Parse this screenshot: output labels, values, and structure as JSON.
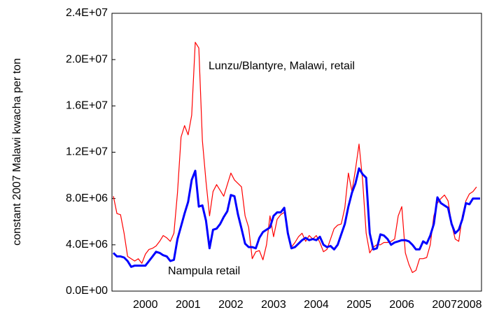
{
  "chart_data": {
    "type": "line",
    "y_label": "constant 2007 Malawi kwacha per ton",
    "categories": [
      null,
      null,
      null,
      null,
      null,
      null,
      null,
      null,
      null,
      "2000",
      null,
      null,
      null,
      null,
      null,
      null,
      null,
      null,
      null,
      null,
      null,
      "2001",
      null,
      null,
      null,
      null,
      null,
      null,
      null,
      null,
      null,
      null,
      null,
      "2002",
      null,
      null,
      null,
      null,
      null,
      null,
      null,
      null,
      null,
      null,
      null,
      "2003",
      null,
      null,
      null,
      null,
      null,
      null,
      null,
      null,
      null,
      null,
      null,
      "2004",
      null,
      null,
      null,
      null,
      null,
      null,
      null,
      null,
      null,
      null,
      null,
      "2005",
      null,
      null,
      null,
      null,
      null,
      null,
      null,
      null,
      null,
      null,
      null,
      "2006",
      null,
      null,
      null,
      null,
      null,
      null,
      null,
      null,
      null,
      null,
      null,
      "2007",
      null,
      null,
      null,
      null,
      null,
      null,
      "2008",
      null,
      null,
      null
    ],
    "series": [
      {
        "name": "Lunzu/Blantyre, Malawi, retail",
        "color": "#ff0000",
        "values": [
          8200000.0,
          6700000.0,
          6600000.0,
          5000000.0,
          3000000.0,
          2800000.0,
          2600000.0,
          2800000.0,
          2400000.0,
          3200000.0,
          3600000.0,
          3700000.0,
          3900000.0,
          4300000.0,
          4800000.0,
          4600000.0,
          4300000.0,
          5000000.0,
          8500000.0,
          13300000.0,
          14300000.0,
          13500000.0,
          15200000.0,
          21500000.0,
          21000000.0,
          13000000.0,
          9500000.0,
          6500000.0,
          8600000.0,
          9200000.0,
          8700000.0,
          8200000.0,
          9200000.0,
          10200000.0,
          9600000.0,
          9300000.0,
          9000000.0,
          6500000.0,
          5500000.0,
          2800000.0,
          3400000.0,
          3500000.0,
          2700000.0,
          4000000.0,
          6500000.0,
          4700000.0,
          6200000.0,
          6600000.0,
          6800000.0,
          5200000.0,
          3800000.0,
          4200000.0,
          4700000.0,
          5000000.0,
          4300000.0,
          4800000.0,
          4500000.0,
          4800000.0,
          4200000.0,
          3400000.0,
          3600000.0,
          4500000.0,
          5400000.0,
          5700000.0,
          5800000.0,
          7200000.0,
          10200000.0,
          8600000.0,
          10500000.0,
          12700000.0,
          9600000.0,
          5000000.0,
          3300000.0,
          3800000.0,
          4000000.0,
          4000000.0,
          4200000.0,
          4200000.0,
          4300000.0,
          4500000.0,
          6500000.0,
          7300000.0,
          3300000.0,
          2300000.0,
          1600000.0,
          1800000.0,
          2800000.0,
          2800000.0,
          2900000.0,
          4000000.0,
          6500000.0,
          7600000.0,
          8000000.0,
          8300000.0,
          7800000.0,
          5800000.0,
          4500000.0,
          4300000.0,
          6500000.0,
          7800000.0,
          8400000.0,
          8600000.0,
          9000000.0,
          null
        ]
      },
      {
        "name": "Nampula retail",
        "color": "#0000ff",
        "values": [
          3300000.0,
          3000000.0,
          3000000.0,
          2900000.0,
          2600000.0,
          2100000.0,
          2200000.0,
          2200000.0,
          2200000.0,
          2200000.0,
          2600000.0,
          3000000.0,
          3400000.0,
          3300000.0,
          3100000.0,
          3000000.0,
          2600000.0,
          2700000.0,
          4500000.0,
          5600000.0,
          6700000.0,
          7700000.0,
          9600000.0,
          10400000.0,
          7300000.0,
          7400000.0,
          6100000.0,
          3700000.0,
          5300000.0,
          5400000.0,
          5800000.0,
          6400000.0,
          6900000.0,
          8300000.0,
          8200000.0,
          6600000.0,
          5400000.0,
          4100000.0,
          3800000.0,
          3800000.0,
          3700000.0,
          4600000.0,
          5100000.0,
          5300000.0,
          5500000.0,
          6500000.0,
          6800000.0,
          6800000.0,
          7200000.0,
          5000000.0,
          3700000.0,
          3800000.0,
          4100000.0,
          4400000.0,
          4600000.0,
          4400000.0,
          4500000.0,
          4400000.0,
          4700000.0,
          4000000.0,
          3800000.0,
          3900000.0,
          3600000.0,
          4000000.0,
          4900000.0,
          5800000.0,
          7300000.0,
          8500000.0,
          9300000.0,
          10600000.0,
          10100000.0,
          9800000.0,
          5000000.0,
          3600000.0,
          3700000.0,
          4900000.0,
          4800000.0,
          4500000.0,
          4000000.0,
          4200000.0,
          4300000.0,
          4400000.0,
          4400000.0,
          4300000.0,
          4000000.0,
          3600000.0,
          3600000.0,
          4300000.0,
          4100000.0,
          4800000.0,
          5800000.0,
          8100000.0,
          7600000.0,
          7400000.0,
          7200000.0,
          5800000.0,
          5000000.0,
          5300000.0,
          6200000.0,
          7600000.0,
          7500000.0,
          8000000.0,
          8000000.0,
          8000000.0
        ]
      }
    ],
    "ylim": [
      0,
      24000000
    ],
    "yticks": [
      {
        "value": 0,
        "label": "0.0E+00"
      },
      {
        "value": 4000000,
        "label": "4.0E+06"
      },
      {
        "value": 8000000,
        "label": "8.0E+06"
      },
      {
        "value": 12000000,
        "label": "1.2E+07"
      },
      {
        "value": 16000000,
        "label": "1.6E+07"
      },
      {
        "value": 20000000,
        "label": "2.0E+07"
      },
      {
        "value": 24000000,
        "label": "2.4E+07"
      }
    ],
    "grid": false
  }
}
